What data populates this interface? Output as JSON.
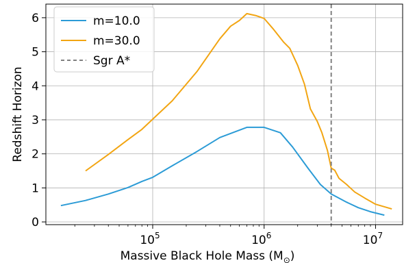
{
  "chart_data": {
    "type": "line",
    "xscale": "log",
    "xlabel": "Massive Black Hole Mass (M",
    "xlabel_sub": "⊙",
    "xlabel_close": ")",
    "ylabel": "Redshift Horizon",
    "xlim": [
      11000,
      17500000
    ],
    "ylim": [
      -0.08,
      6.4
    ],
    "grid": true,
    "legend_placement": "top-left",
    "x_ticks": [
      {
        "value": 100000,
        "base": "10",
        "exp": "5"
      },
      {
        "value": 1000000,
        "base": "10",
        "exp": "6"
      },
      {
        "value": 10000000,
        "base": "10",
        "exp": "7"
      }
    ],
    "y_ticks": [
      {
        "value": 0,
        "label": "0"
      },
      {
        "value": 1,
        "label": "1"
      },
      {
        "value": 2,
        "label": "2"
      },
      {
        "value": 3,
        "label": "3"
      },
      {
        "value": 4,
        "label": "4"
      },
      {
        "value": 5,
        "label": "5"
      },
      {
        "value": 6,
        "label": "6"
      }
    ],
    "series": [
      {
        "name": "m=10.0",
        "color": "#2b9bd6",
        "style": "solid",
        "x": [
          15000,
          25000,
          40000,
          60000,
          80000,
          100000,
          150000,
          250000,
          400000,
          700000,
          1000000,
          1400000,
          1800000,
          2500000,
          3200000,
          4000000,
          5500000,
          7000000,
          9000000,
          12000000
        ],
        "y": [
          0.48,
          0.63,
          0.82,
          1.01,
          1.19,
          1.31,
          1.65,
          2.07,
          2.48,
          2.78,
          2.78,
          2.62,
          2.2,
          1.56,
          1.1,
          0.82,
          0.58,
          0.42,
          0.3,
          0.2
        ]
      },
      {
        "name": "m=30.0",
        "color": "#f2a512",
        "style": "solid",
        "x": [
          25000,
          40000,
          60000,
          80000,
          100000,
          150000,
          250000,
          400000,
          500000,
          600000,
          700000,
          850000,
          1000000,
          1200000,
          1500000,
          1700000,
          2000000,
          2300000,
          2600000,
          3000000,
          3300000,
          3700000,
          4000000,
          4300000,
          4700000,
          5500000,
          6500000,
          8000000,
          10000000,
          14000000
        ],
        "y": [
          1.5,
          1.98,
          2.42,
          2.72,
          3.02,
          3.56,
          4.42,
          5.38,
          5.75,
          5.92,
          6.12,
          6.06,
          5.98,
          5.68,
          5.28,
          5.1,
          4.6,
          4.05,
          3.32,
          2.95,
          2.62,
          2.1,
          1.58,
          1.52,
          1.28,
          1.1,
          0.88,
          0.7,
          0.52,
          0.38
        ]
      },
      {
        "name": "Sgr A*",
        "color": "#808080",
        "style": "dashed",
        "vline_x": 4000000
      }
    ]
  }
}
